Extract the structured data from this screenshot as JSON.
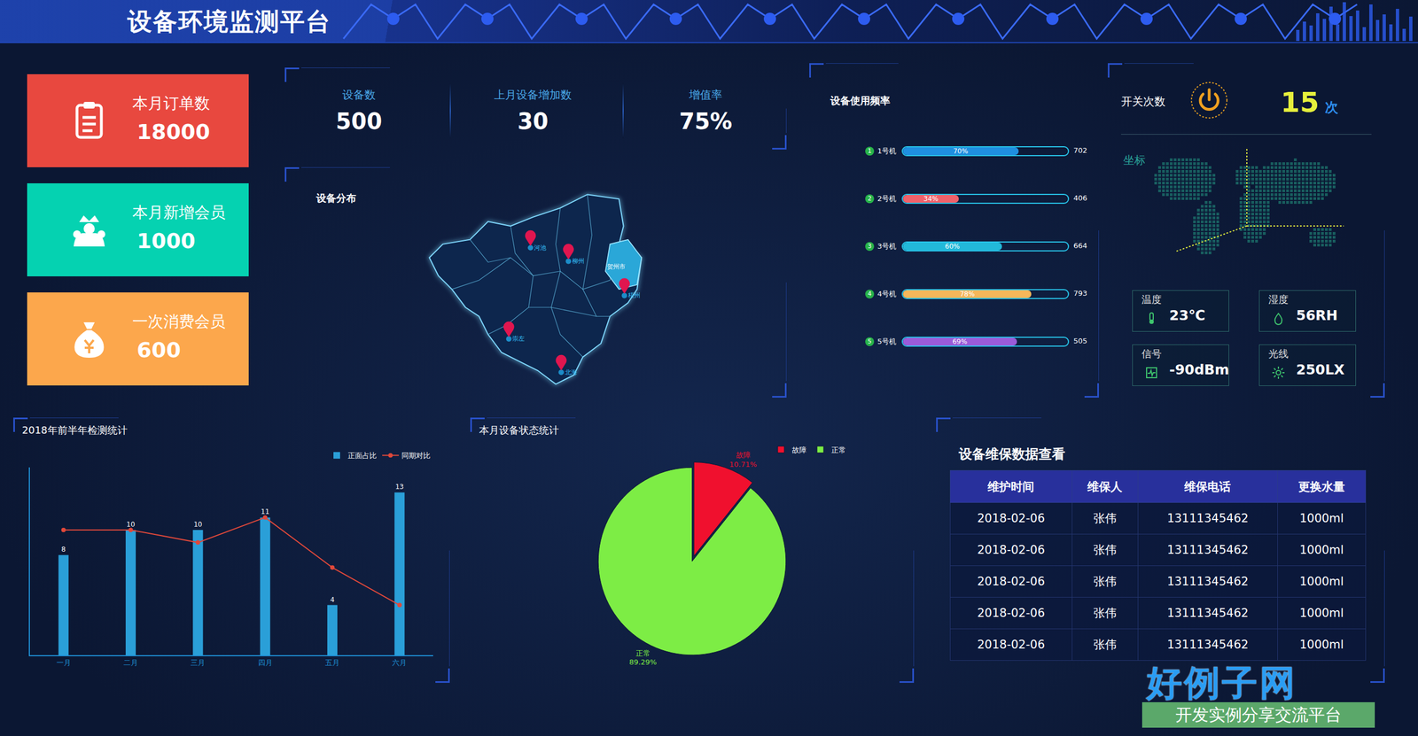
{
  "header": {
    "title": "设备环境监测平台"
  },
  "cards": [
    {
      "label": "本月订单数",
      "value": 18000,
      "color": "#e8483f"
    },
    {
      "label": "本月新增会员",
      "value": 1000,
      "color": "#05d2b1"
    },
    {
      "label": "一次消费会员",
      "value": 600,
      "color": "#fca74c"
    }
  ],
  "stats": [
    {
      "label": "设备数",
      "value": "500"
    },
    {
      "label": "上月设备增加数",
      "value": "30"
    },
    {
      "label": "增值率",
      "value": "75%"
    }
  ],
  "map": {
    "title": "设备分布",
    "cities": [
      "河池",
      "柳州",
      "贺州市",
      "梧州",
      "崇左",
      "北海"
    ]
  },
  "usage": {
    "title": "设备使用频率",
    "rows": [
      {
        "rank": 1,
        "name": "1号机",
        "percent": 70,
        "label": "70%",
        "count": 702,
        "color": "#1f8fe0"
      },
      {
        "rank": 2,
        "name": "2号机",
        "percent": 34,
        "label": "34%",
        "count": 406,
        "color": "#f0616a"
      },
      {
        "rank": 3,
        "name": "3号机",
        "percent": 60,
        "label": "60%",
        "count": 664,
        "color": "#22b8d9"
      },
      {
        "rank": 4,
        "name": "4号机",
        "percent": 78,
        "label": "78%",
        "count": 793,
        "color": "#f5b75a"
      },
      {
        "rank": 5,
        "name": "5号机",
        "percent": 69,
        "label": "69%",
        "count": 505,
        "color": "#9b5bd9"
      }
    ]
  },
  "switch": {
    "label": "开关次数",
    "value": 15,
    "unit": "次"
  },
  "coord_label": "坐标",
  "sensors": [
    {
      "label": "温度",
      "value": "23℃"
    },
    {
      "label": "湿度",
      "value": "56RH"
    },
    {
      "label": "信号",
      "value": "-90dBm"
    },
    {
      "label": "光线",
      "value": "250LX"
    }
  ],
  "chart_data": [
    {
      "type": "bar",
      "title": "2018年前半年检测统计",
      "categories": [
        "一月",
        "二月",
        "三月",
        "四月",
        "五月",
        "六月"
      ],
      "series": [
        {
          "name": "正面占比",
          "type": "bar",
          "color": "#2a9fd8",
          "values": [
            8,
            10,
            10,
            11,
            4,
            13
          ],
          "data_labels": true
        },
        {
          "name": "同期对比",
          "type": "line",
          "color": "#e0483a",
          "values": [
            10,
            10,
            9,
            11,
            7,
            4
          ],
          "marker": "circle"
        }
      ],
      "ylim": [
        0,
        15
      ],
      "tick_labels": "x",
      "grid": false,
      "legend": "top-right"
    },
    {
      "type": "pie",
      "title": "本月设备状态统计",
      "categories": [
        "故障",
        "正常"
      ],
      "values": [
        10.71,
        89.29
      ],
      "value_labels": [
        "10.71%",
        "89.29%"
      ],
      "colors": [
        "#f0102e",
        "#7ded45"
      ],
      "data_labels": true,
      "legend": "top-right"
    }
  ],
  "table": {
    "title": "设备维保数据查看",
    "header": [
      "维护时间",
      "维保人",
      "维保电话",
      "更换水量"
    ],
    "rows": [
      [
        "2018-02-06",
        "张伟",
        "13111345462",
        "1000ml"
      ],
      [
        "2018-02-06",
        "张伟",
        "13111345462",
        "1000ml"
      ],
      [
        "2018-02-06",
        "张伟",
        "13111345462",
        "1000ml"
      ],
      [
        "2018-02-06",
        "张伟",
        "13111345462",
        "1000ml"
      ],
      [
        "2018-02-06",
        "张伟",
        "13111345462",
        "1000ml"
      ]
    ]
  },
  "logo": {
    "title": "好例子网",
    "subtitle": "开发实例分享交流平台"
  }
}
